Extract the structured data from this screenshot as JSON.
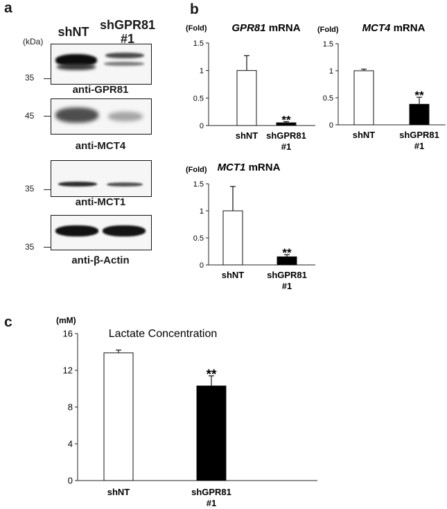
{
  "panels": {
    "a": "a",
    "b": "b",
    "c": "c"
  },
  "blot": {
    "lanes": [
      "shNT",
      "shGPR81\n#1"
    ],
    "unit": "(kDa)",
    "panels": [
      {
        "caption": "anti-GPR81",
        "marker": "35"
      },
      {
        "caption": "anti-MCT4",
        "marker": "45"
      },
      {
        "caption": "anti-MCT1",
        "marker": "35"
      },
      {
        "caption": "anti-β-Actin",
        "marker": "35"
      }
    ]
  },
  "chart_data": [
    {
      "id": "gpr81",
      "type": "bar",
      "title_gene": "GPR81",
      "title_suffix": " mRNA",
      "ylabel": "(Fold)",
      "categories": [
        "shNT",
        "shGPR81\n#1"
      ],
      "values": [
        1.0,
        0.05
      ],
      "errors": [
        0.27,
        0.02
      ],
      "fills": [
        "#ffffff",
        "#000000"
      ],
      "significance": [
        "",
        "**"
      ],
      "ylim": [
        0,
        1.5
      ],
      "yticks": [
        "0",
        "0.5",
        "1",
        "1.5"
      ]
    },
    {
      "id": "mct4",
      "type": "bar",
      "title_gene": "MCT4",
      "title_suffix": " mRNA",
      "ylabel": "(Fold)",
      "categories": [
        "shNT",
        "shGPR81\n#1"
      ],
      "values": [
        1.0,
        0.38
      ],
      "errors": [
        0.03,
        0.13
      ],
      "fills": [
        "#ffffff",
        "#000000"
      ],
      "significance": [
        "",
        "**"
      ],
      "ylim": [
        0,
        1.5
      ],
      "yticks": [
        "0",
        "0.5",
        "1",
        "1.5"
      ]
    },
    {
      "id": "mct1",
      "type": "bar",
      "title_gene": "MCT1",
      "title_suffix": " mRNA",
      "ylabel": "(Fold)",
      "categories": [
        "shNT",
        "shGPR81\n#1"
      ],
      "values": [
        1.0,
        0.15
      ],
      "errors": [
        0.45,
        0.04
      ],
      "fills": [
        "#ffffff",
        "#000000"
      ],
      "significance": [
        "",
        "**"
      ],
      "ylim": [
        0,
        1.5
      ],
      "yticks": [
        "0",
        "0.5",
        "1",
        "1.5"
      ]
    },
    {
      "id": "lactate",
      "type": "bar",
      "title_gene": "",
      "title_suffix": "Lactate Concentration",
      "ylabel": "(mM)",
      "categories": [
        "shNT",
        "shGPR81\n#1"
      ],
      "values": [
        13.9,
        10.3
      ],
      "errors": [
        0.3,
        1.1
      ],
      "fills": [
        "#ffffff",
        "#000000"
      ],
      "significance": [
        "",
        "**"
      ],
      "ylim": [
        0,
        16
      ],
      "yticks": [
        "0",
        "4",
        "8",
        "12",
        "16"
      ]
    }
  ]
}
